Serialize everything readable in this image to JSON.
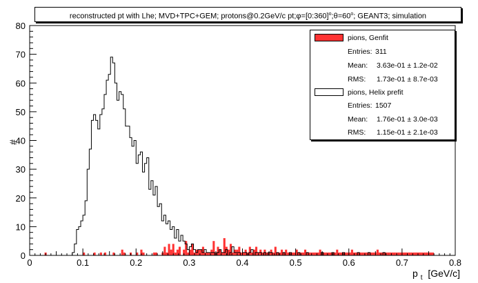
{
  "window_title": "reconstructed pt with Lhe; MVD+TPC+GEM; protons@0.2GeV/c pt;",
  "title": {
    "text_a": "reconstructed pt with Lhe; MVD+TPC+GEM; protons@0.2GeV/c pt;",
    "text_b": "=[0:360]",
    "text_c": ";",
    "text_d": "=60",
    "text_e": "; GEANT3; simulation",
    "phi": "φ",
    "theta": "θ",
    "degree": "o"
  },
  "legend": {
    "entries": [
      {
        "name": "pions, Genfit",
        "color": "#ff3333",
        "entries_label": "Entries:",
        "entries_value": "311",
        "mean_label": "Mean:",
        "mean_value": "3.63e-01 ± 1.2e-02",
        "rms_label": "RMS:",
        "rms_value": "1.73e-01 ± 8.7e-03"
      },
      {
        "name": "pions, Helix prefit",
        "color": "#ffffff",
        "entries_label": "Entries:",
        "entries_value": "1507",
        "mean_label": "Mean:",
        "mean_value": "1.76e-01 ± 3.0e-03",
        "rms_label": "RMS:",
        "rms_value": "1.15e-01 ± 2.1e-03"
      }
    ]
  },
  "chart_data": {
    "type": "histogram",
    "xlabel_main": "p",
    "xlabel_sub": "t",
    "xlabel_unit": "[GeV/c]",
    "ylabel": "#",
    "xlim": [
      0,
      0.8
    ],
    "ylim": [
      0,
      80
    ],
    "x_ticks": [
      "0",
      "0.1",
      "0.2",
      "0.3",
      "0.4",
      "0.5",
      "0.6",
      "0.7",
      "0.8"
    ],
    "y_ticks": [
      "0",
      "10",
      "20",
      "30",
      "40",
      "50",
      "60",
      "70",
      "80"
    ],
    "grid": false,
    "bin_width": 0.004,
    "series": [
      {
        "name": "pions, Helix prefit",
        "color": "#000000",
        "fill": "none",
        "values": [
          0,
          0,
          0,
          0,
          0,
          0,
          0,
          0,
          0,
          0,
          0,
          0,
          0,
          0,
          0,
          0,
          0,
          0,
          0,
          0,
          1,
          4,
          9,
          10,
          12,
          14,
          19,
          30,
          37,
          47,
          49,
          47,
          44,
          49,
          51,
          56,
          61,
          63,
          69,
          67,
          60,
          54,
          57,
          56,
          51,
          45,
          45,
          41,
          38,
          40,
          32,
          35,
          36,
          29,
          32,
          34,
          23,
          26,
          21,
          24,
          17,
          18,
          12,
          14,
          11,
          12,
          9,
          10,
          6,
          9,
          5,
          7,
          5,
          4,
          2,
          3,
          4,
          2,
          1,
          2,
          2,
          1,
          2,
          1,
          1,
          1,
          1,
          0,
          1,
          2,
          1,
          1,
          2,
          0,
          1,
          3,
          1,
          1,
          1,
          0,
          1,
          1,
          0,
          1,
          2,
          0,
          1,
          1,
          1,
          0,
          1,
          0,
          1,
          1,
          0,
          0,
          1,
          0,
          0,
          1,
          0,
          0,
          1,
          0,
          0,
          0,
          1,
          0,
          0,
          0,
          1,
          0,
          0,
          0,
          0,
          0,
          0,
          1,
          0,
          0,
          0,
          0,
          1,
          0,
          0,
          0,
          0,
          1,
          0,
          0,
          0,
          0,
          0,
          0,
          1,
          0,
          0,
          0,
          0,
          1,
          0,
          0,
          0,
          0,
          0,
          0,
          1,
          0,
          0,
          0,
          0,
          0,
          0,
          0,
          0,
          0,
          0,
          0,
          0,
          0
        ]
      },
      {
        "name": "pions, Genfit",
        "color": "#ff3333",
        "fill": "#ff3333",
        "values": [
          0,
          0,
          0,
          0,
          0,
          0,
          0,
          1,
          0,
          0,
          0,
          0,
          0,
          0,
          0,
          0,
          0,
          0,
          0,
          0,
          0,
          0,
          0,
          0,
          0,
          1,
          0,
          0,
          0,
          0,
          1,
          0,
          0,
          1,
          0,
          1,
          0,
          0,
          0,
          1,
          0,
          0,
          0,
          2,
          1,
          0,
          0,
          1,
          0,
          0,
          1,
          0,
          2,
          1,
          0,
          0,
          0,
          0,
          1,
          1,
          0,
          0,
          1,
          3,
          1,
          4,
          2,
          4,
          1,
          2,
          3,
          0,
          2,
          5,
          1,
          2,
          4,
          1,
          2,
          2,
          2,
          3,
          1,
          1,
          1,
          2,
          5,
          1,
          3,
          2,
          1,
          6,
          3,
          2,
          4,
          1,
          2,
          2,
          3,
          1,
          1,
          2,
          1,
          3,
          1,
          2,
          3,
          1,
          2,
          1,
          2,
          1,
          1,
          2,
          1,
          3,
          1,
          1,
          2,
          1,
          2,
          1,
          1,
          1,
          1,
          2,
          1,
          1,
          1,
          2,
          1,
          1,
          1,
          1,
          1,
          1,
          2,
          1,
          1,
          1,
          1,
          1,
          1,
          1,
          2,
          1,
          1,
          1,
          1,
          1,
          1,
          2,
          1,
          1,
          1,
          1,
          1,
          1,
          1,
          1,
          1,
          1,
          1,
          2,
          1,
          1,
          1,
          1,
          1,
          1,
          1,
          1,
          1,
          1,
          1,
          1,
          1,
          1,
          1,
          1,
          1,
          1,
          1,
          1,
          1,
          1,
          1,
          1,
          1,
          1
        ]
      }
    ]
  }
}
